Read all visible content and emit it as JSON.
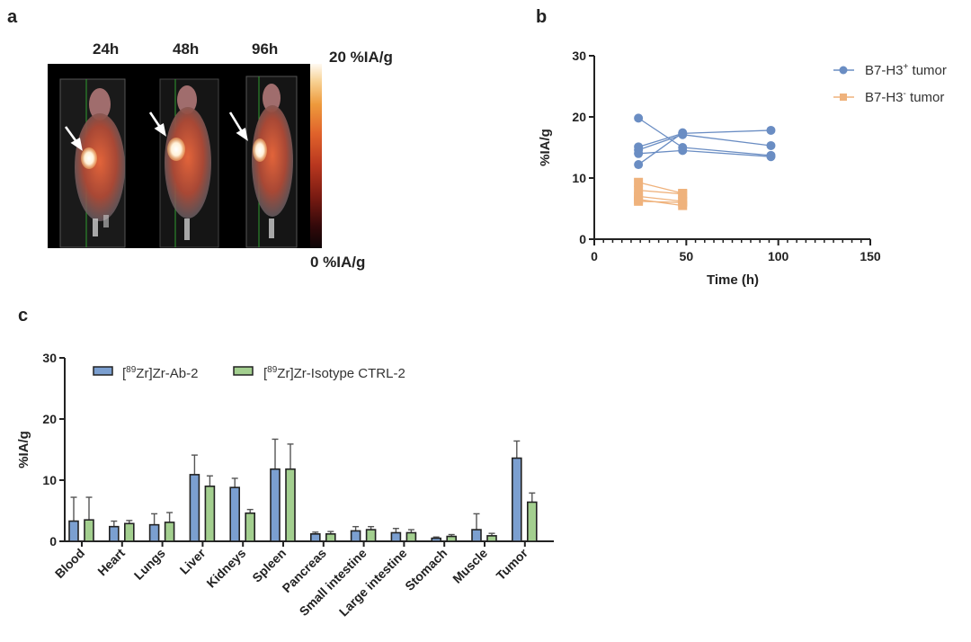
{
  "panels": {
    "a": "a",
    "b": "b",
    "c": "c"
  },
  "panel_a": {
    "timepoints": [
      "24h",
      "48h",
      "96h"
    ],
    "colorbar_max": "20 %IA/g",
    "colorbar_min": "0 %IA/g",
    "colormap": [
      "#0d0506",
      "#33090a",
      "#7a1b12",
      "#b8371f",
      "#e0622b",
      "#ee9a3c",
      "#f7cf8f",
      "#fffaf2"
    ]
  },
  "colors": {
    "blue": "#6a8dc3",
    "orange": "#efb27c",
    "green": "#9ccb8b",
    "axis": "#222222"
  },
  "chart_data": [
    {
      "type": "line",
      "panel": "b",
      "xlabel": "Time (h)",
      "ylabel": "%IA/g",
      "xlim": [
        0,
        150
      ],
      "ylim": [
        0,
        30
      ],
      "xticks": [
        "0",
        "50",
        "100",
        "150"
      ],
      "yticks": [
        "0",
        "10",
        "20",
        "30"
      ],
      "legend": "top-right",
      "series": [
        {
          "name": "B7-H3",
          "sup": "+",
          "suffix": " tumor",
          "marker": "circle",
          "color": "#6a8dc3",
          "x": [
            24,
            48,
            96
          ],
          "subjects": [
            [
              19.8,
              15.0,
              13.7
            ],
            [
              15.1,
              17.3,
              17.8
            ],
            [
              14.6,
              17.1,
              15.3
            ],
            [
              14.0,
              14.5,
              13.5
            ],
            [
              12.2,
              17.4,
              null
            ]
          ]
        },
        {
          "name": "B7-H3",
          "sup": "-",
          "suffix": " tumor",
          "marker": "square",
          "color": "#efb27c",
          "x": [
            24,
            48
          ],
          "subjects": [
            [
              9.3,
              7.5
            ],
            [
              8.0,
              7.4
            ],
            [
              7.0,
              6.2
            ],
            [
              6.5,
              5.5
            ],
            [
              6.2,
              6.0
            ]
          ]
        }
      ]
    },
    {
      "type": "bar",
      "panel": "c",
      "ylabel": "%IA/g",
      "ylim": [
        0,
        30
      ],
      "yticks": [
        "0",
        "10",
        "20",
        "30"
      ],
      "legend": "top-left",
      "categories": [
        "Blood",
        "Heart",
        "Lungs",
        "Liver",
        "Kidneys",
        "Spleen",
        "Pancreas",
        "Small intestine",
        "Large intestine",
        "Stomach",
        "Muscle",
        "Tumor"
      ],
      "series": [
        {
          "pre": "[",
          "sup": "89",
          "name": "Zr]Zr-Ab-2",
          "color": "#7b9fd0",
          "values": [
            3.3,
            2.4,
            2.7,
            10.9,
            8.8,
            11.8,
            1.2,
            1.7,
            1.4,
            0.5,
            1.9,
            13.6
          ],
          "errors": [
            3.9,
            0.9,
            1.8,
            3.2,
            1.5,
            4.9,
            0.3,
            0.7,
            0.7,
            0.2,
            2.6,
            2.8
          ]
        },
        {
          "pre": "[",
          "sup": "89",
          "name": "Zr]Zr-Isotype CTRL-2",
          "color": "#a3cf8f",
          "values": [
            3.5,
            2.9,
            3.1,
            9.0,
            4.6,
            11.8,
            1.2,
            1.9,
            1.4,
            0.8,
            0.9,
            6.4
          ],
          "errors": [
            3.7,
            0.5,
            1.6,
            1.7,
            0.6,
            4.1,
            0.4,
            0.5,
            0.5,
            0.3,
            0.4,
            1.5
          ]
        }
      ]
    }
  ]
}
